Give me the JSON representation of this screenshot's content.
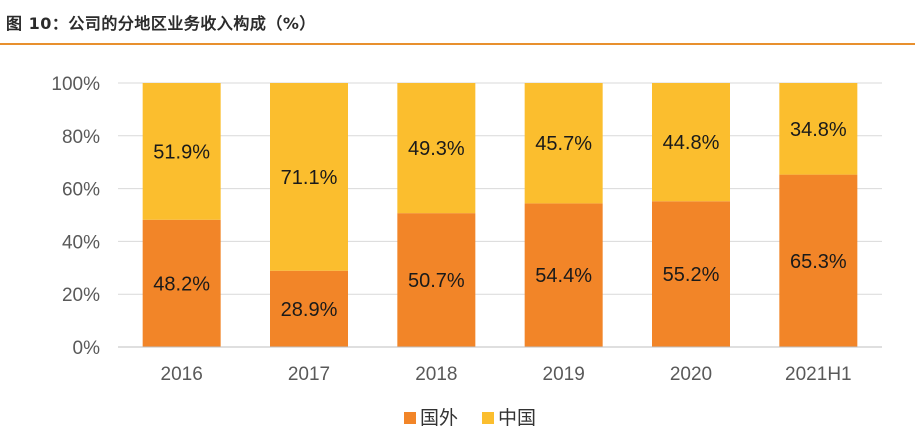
{
  "title": "图 10：公司的分地区业务收入构成（%）",
  "chart_data": {
    "type": "bar",
    "stacked": true,
    "categories": [
      "2016",
      "2017",
      "2018",
      "2019",
      "2020",
      "2021H1"
    ],
    "series": [
      {
        "name": "国外",
        "color": "#f28528",
        "values": [
          48.2,
          28.9,
          50.7,
          54.4,
          55.2,
          65.3
        ],
        "labels": [
          "48.2%",
          "28.9%",
          "50.7%",
          "54.4%",
          "55.2%",
          "65.3%"
        ]
      },
      {
        "name": "中国",
        "color": "#fbbe2e",
        "values": [
          51.9,
          71.1,
          49.3,
          45.7,
          44.8,
          34.8
        ],
        "labels": [
          "51.9%",
          "71.1%",
          "49.3%",
          "45.7%",
          "44.8%",
          "34.8%"
        ]
      }
    ],
    "yticks": [
      "0%",
      "20%",
      "40%",
      "60%",
      "80%",
      "100%"
    ],
    "ylim": [
      0,
      100
    ],
    "grid": true,
    "legend_position": "bottom"
  }
}
